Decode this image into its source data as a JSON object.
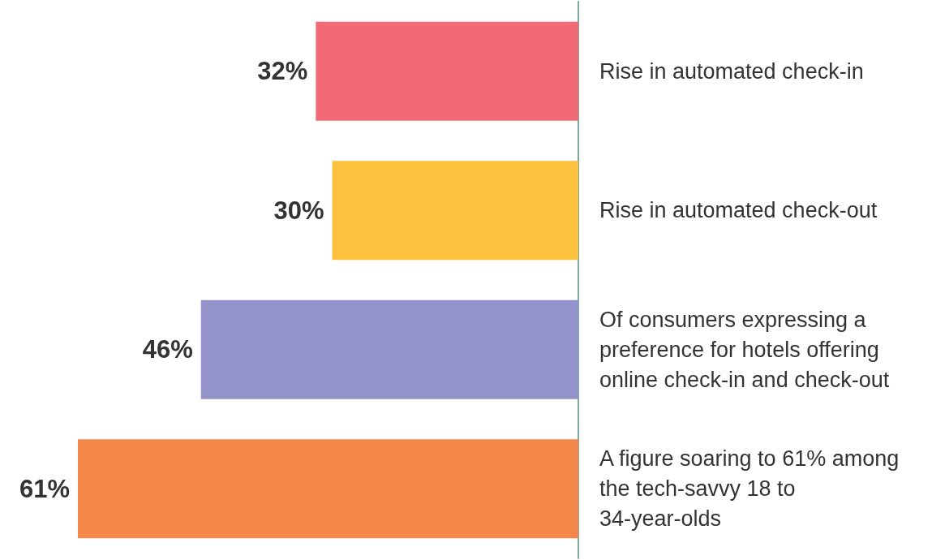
{
  "chart_data": {
    "type": "bar",
    "orientation": "horizontal",
    "categories": [
      "Rise in automated check-in",
      "Rise in automated check-out",
      "Of consumers expressing a preference for hotels offering online check-in and check-out",
      "A figure soaring to 61% among the tech-savvy 18 to 34-year-olds"
    ],
    "values": [
      32,
      30,
      46,
      61
    ],
    "colors": [
      "#f26b74",
      "#fdc13d",
      "#9493c9",
      "#f5874a"
    ],
    "value_labels": [
      "32%",
      "30%",
      "46%",
      "61%"
    ],
    "tick_labels": "y"
  }
}
